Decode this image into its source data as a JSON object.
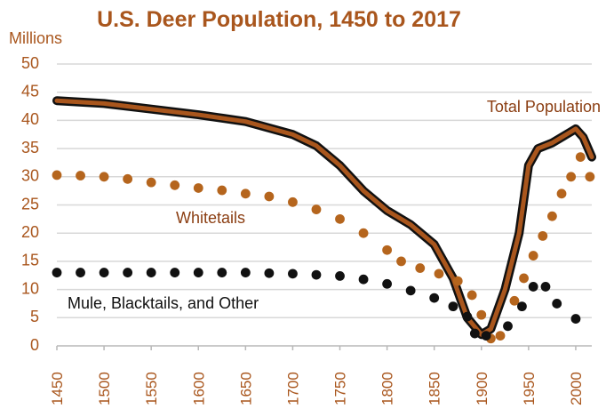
{
  "chart_data": {
    "type": "line",
    "title": "U.S. Deer Population, 1450 to 2017",
    "ylabel": "Millions",
    "xlabel": "",
    "xlim": [
      1450,
      2017
    ],
    "ylim": [
      0,
      50
    ],
    "grid": true,
    "x_ticks": [
      "1450",
      "1500",
      "1550",
      "1600",
      "1650",
      "1700",
      "1750",
      "1800",
      "1850",
      "1900",
      "1950",
      "2000"
    ],
    "y_ticks": [
      "0",
      "5",
      "10",
      "15",
      "20",
      "25",
      "30",
      "35",
      "40",
      "45",
      "50"
    ],
    "series": [
      {
        "name": "Total Population",
        "label": "Total Population",
        "style": "thick-line",
        "color": "#a9561d",
        "outline_color": "#111111",
        "points": [
          [
            1450,
            43.5
          ],
          [
            1500,
            43.0
          ],
          [
            1550,
            42.0
          ],
          [
            1600,
            41.0
          ],
          [
            1650,
            39.8
          ],
          [
            1700,
            37.5
          ],
          [
            1725,
            35.5
          ],
          [
            1750,
            32.0
          ],
          [
            1775,
            27.5
          ],
          [
            1800,
            24.0
          ],
          [
            1825,
            21.5
          ],
          [
            1850,
            18.0
          ],
          [
            1870,
            12.0
          ],
          [
            1885,
            5.0
          ],
          [
            1900,
            2.0
          ],
          [
            1910,
            3.0
          ],
          [
            1925,
            10.0
          ],
          [
            1940,
            20.0
          ],
          [
            1950,
            32.0
          ],
          [
            1960,
            35.0
          ],
          [
            1975,
            36.0
          ],
          [
            1990,
            37.5
          ],
          [
            2000,
            38.5
          ],
          [
            2008,
            37.0
          ],
          [
            2017,
            33.5
          ]
        ]
      },
      {
        "name": "Whitetails",
        "label": "Whitetails",
        "style": "dots",
        "color": "#b5651d",
        "points": [
          [
            1450,
            30.3
          ],
          [
            1475,
            30.2
          ],
          [
            1500,
            30.0
          ],
          [
            1525,
            29.6
          ],
          [
            1550,
            29.0
          ],
          [
            1575,
            28.5
          ],
          [
            1600,
            28.0
          ],
          [
            1625,
            27.6
          ],
          [
            1650,
            27.0
          ],
          [
            1675,
            26.5
          ],
          [
            1700,
            25.5
          ],
          [
            1725,
            24.2
          ],
          [
            1750,
            22.5
          ],
          [
            1775,
            20.0
          ],
          [
            1800,
            17.0
          ],
          [
            1815,
            15.0
          ],
          [
            1835,
            13.8
          ],
          [
            1855,
            12.8
          ],
          [
            1875,
            11.5
          ],
          [
            1890,
            9.0
          ],
          [
            1900,
            5.5
          ],
          [
            1910,
            1.3
          ],
          [
            1920,
            1.8
          ],
          [
            1935,
            8.0
          ],
          [
            1945,
            12.0
          ],
          [
            1955,
            16.0
          ],
          [
            1965,
            19.5
          ],
          [
            1975,
            23.0
          ],
          [
            1985,
            27.0
          ],
          [
            1995,
            30.0
          ],
          [
            2005,
            33.5
          ],
          [
            2015,
            30.0
          ]
        ]
      },
      {
        "name": "Mule, Blacktails, and Other",
        "label": "Mule, Blacktails, and Other",
        "style": "dots",
        "color": "#111111",
        "points": [
          [
            1450,
            13.0
          ],
          [
            1475,
            13.0
          ],
          [
            1500,
            13.0
          ],
          [
            1525,
            13.0
          ],
          [
            1550,
            13.0
          ],
          [
            1575,
            13.0
          ],
          [
            1600,
            13.0
          ],
          [
            1625,
            13.0
          ],
          [
            1650,
            13.0
          ],
          [
            1675,
            12.9
          ],
          [
            1700,
            12.8
          ],
          [
            1725,
            12.6
          ],
          [
            1750,
            12.4
          ],
          [
            1775,
            11.8
          ],
          [
            1800,
            11.0
          ],
          [
            1825,
            9.8
          ],
          [
            1850,
            8.5
          ],
          [
            1870,
            7.0
          ],
          [
            1885,
            5.2
          ],
          [
            1893,
            2.2
          ],
          [
            1905,
            1.8
          ],
          [
            1928,
            3.5
          ],
          [
            1943,
            7.0
          ],
          [
            1955,
            10.5
          ],
          [
            1968,
            10.5
          ],
          [
            1980,
            7.5
          ],
          [
            2000,
            4.8
          ]
        ]
      }
    ]
  },
  "colors": {
    "accent": "#a9561d",
    "total_outline": "#111111",
    "total_fill": "#a9561d",
    "whitetails": "#b5651d",
    "mule": "#111111",
    "grid": "#d8d8d8"
  }
}
